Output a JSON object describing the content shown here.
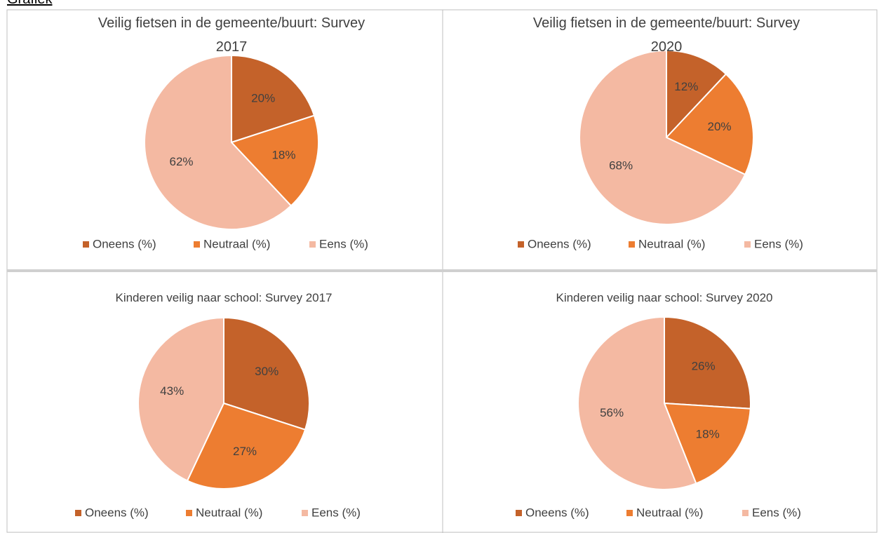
{
  "heading": "Grafiek",
  "chart_data": [
    {
      "type": "pie",
      "title": "Veilig fietsen in de gemeente/buurt: Survey 2017",
      "categories": [
        "Oneens (%)",
        "Neutraal (%)",
        "Eens (%)"
      ],
      "colors": [
        "#c4622a",
        "#ed7d31",
        "#f4b9a2"
      ],
      "values": [
        20,
        18,
        62
      ],
      "value_labels": [
        "20%",
        "18%",
        "62%"
      ],
      "legend": "bottom"
    },
    {
      "type": "pie",
      "title": "Veilig fietsen in de gemeente/buurt: Survey 2020",
      "categories": [
        "Oneens (%)",
        "Neutraal (%)",
        "Eens (%)"
      ],
      "colors": [
        "#c4622a",
        "#ed7d31",
        "#f4b9a2"
      ],
      "values": [
        12,
        20,
        68
      ],
      "value_labels": [
        "12%",
        "20%",
        "68%"
      ],
      "legend": "bottom"
    },
    {
      "type": "pie",
      "title": "Kinderen veilig naar school: Survey 2017",
      "categories": [
        "Oneens (%)",
        "Neutraal (%)",
        "Eens (%)"
      ],
      "colors": [
        "#c4622a",
        "#ed7d31",
        "#f4b9a2"
      ],
      "values": [
        30,
        27,
        43
      ],
      "value_labels": [
        "30%",
        "27%",
        "43%"
      ],
      "legend": "bottom"
    },
    {
      "type": "pie",
      "title": "Kinderen veilig naar school: Survey 2020",
      "categories": [
        "Oneens (%)",
        "Neutraal (%)",
        "Eens (%)"
      ],
      "colors": [
        "#c4622a",
        "#ed7d31",
        "#f4b9a2"
      ],
      "values": [
        26,
        18,
        56
      ],
      "value_labels": [
        "26%",
        "18%",
        "56%"
      ],
      "legend": "bottom"
    }
  ]
}
